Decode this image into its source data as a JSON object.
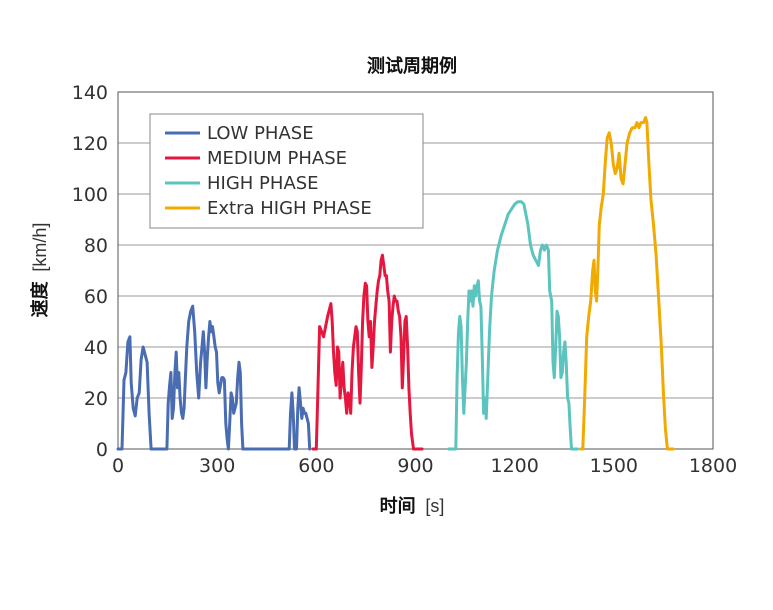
{
  "chart_data": {
    "type": "line",
    "title": "测试周期例",
    "xlabel_main": "时间",
    "xlabel_unit": "[s]",
    "ylabel_main": "速度",
    "ylabel_unit": "[km/h]",
    "xlim": [
      0,
      1800
    ],
    "ylim": [
      0,
      140
    ],
    "xticks": [
      0,
      300,
      600,
      900,
      1200,
      1500,
      1800
    ],
    "yticks": [
      0,
      20,
      40,
      60,
      80,
      100,
      120,
      140
    ],
    "xtick_labels": [
      "0",
      "300",
      "600",
      "900",
      "1200",
      "1500",
      "1800"
    ],
    "ytick_labels": [
      "0",
      "20",
      "40",
      "60",
      "80",
      "100",
      "120",
      "140"
    ],
    "grid": true,
    "legend_position": "top-left",
    "series": [
      {
        "name": "LOW PHASE",
        "color": "#4a6cb3",
        "points": [
          [
            0,
            0
          ],
          [
            12,
            0
          ],
          [
            18,
            27
          ],
          [
            24,
            30
          ],
          [
            30,
            42
          ],
          [
            36,
            44
          ],
          [
            40,
            26
          ],
          [
            46,
            16
          ],
          [
            52,
            13
          ],
          [
            58,
            20
          ],
          [
            64,
            22
          ],
          [
            70,
            35
          ],
          [
            76,
            40
          ],
          [
            82,
            37
          ],
          [
            88,
            34
          ],
          [
            94,
            14
          ],
          [
            100,
            0
          ],
          [
            148,
            0
          ],
          [
            152,
            18
          ],
          [
            156,
            25
          ],
          [
            160,
            30
          ],
          [
            164,
            12
          ],
          [
            168,
            16
          ],
          [
            172,
            30
          ],
          [
            176,
            38
          ],
          [
            180,
            24
          ],
          [
            184,
            30
          ],
          [
            188,
            20
          ],
          [
            192,
            14
          ],
          [
            196,
            12
          ],
          [
            200,
            16
          ],
          [
            204,
            28
          ],
          [
            208,
            40
          ],
          [
            214,
            50
          ],
          [
            220,
            54
          ],
          [
            226,
            56
          ],
          [
            232,
            46
          ],
          [
            238,
            30
          ],
          [
            244,
            20
          ],
          [
            250,
            34
          ],
          [
            254,
            40
          ],
          [
            258,
            46
          ],
          [
            262,
            38
          ],
          [
            266,
            24
          ],
          [
            270,
            36
          ],
          [
            274,
            44
          ],
          [
            278,
            50
          ],
          [
            282,
            46
          ],
          [
            286,
            48
          ],
          [
            290,
            44
          ],
          [
            294,
            40
          ],
          [
            298,
            38
          ],
          [
            302,
            26
          ],
          [
            306,
            22
          ],
          [
            310,
            25
          ],
          [
            314,
            28
          ],
          [
            318,
            28
          ],
          [
            322,
            27
          ],
          [
            326,
            10
          ],
          [
            330,
            4
          ],
          [
            334,
            0
          ],
          [
            338,
            10
          ],
          [
            342,
            22
          ],
          [
            346,
            20
          ],
          [
            350,
            14
          ],
          [
            354,
            16
          ],
          [
            358,
            18
          ],
          [
            362,
            28
          ],
          [
            366,
            34
          ],
          [
            370,
            30
          ],
          [
            374,
            10
          ],
          [
            378,
            0
          ],
          [
            518,
            0
          ],
          [
            522,
            14
          ],
          [
            526,
            22
          ],
          [
            530,
            14
          ],
          [
            534,
            0
          ],
          [
            540,
            0
          ],
          [
            544,
            16
          ],
          [
            548,
            24
          ],
          [
            552,
            18
          ],
          [
            556,
            12
          ],
          [
            560,
            16
          ],
          [
            564,
            14
          ],
          [
            568,
            14
          ],
          [
            572,
            12
          ],
          [
            576,
            10
          ],
          [
            580,
            0
          ]
        ]
      },
      {
        "name": "MEDIUM PHASE",
        "color": "#e5173f",
        "points": [
          [
            590,
            0
          ],
          [
            600,
            0
          ],
          [
            604,
            20
          ],
          [
            610,
            48
          ],
          [
            616,
            46
          ],
          [
            622,
            44
          ],
          [
            628,
            48
          ],
          [
            634,
            52
          ],
          [
            640,
            55
          ],
          [
            644,
            57
          ],
          [
            648,
            50
          ],
          [
            652,
            38
          ],
          [
            656,
            30
          ],
          [
            660,
            25
          ],
          [
            664,
            40
          ],
          [
            668,
            38
          ],
          [
            672,
            20
          ],
          [
            676,
            28
          ],
          [
            680,
            34
          ],
          [
            684,
            24
          ],
          [
            688,
            20
          ],
          [
            692,
            14
          ],
          [
            696,
            22
          ],
          [
            700,
            20
          ],
          [
            704,
            14
          ],
          [
            708,
            30
          ],
          [
            712,
            40
          ],
          [
            716,
            44
          ],
          [
            720,
            48
          ],
          [
            724,
            46
          ],
          [
            728,
            30
          ],
          [
            732,
            18
          ],
          [
            736,
            32
          ],
          [
            740,
            50
          ],
          [
            744,
            60
          ],
          [
            748,
            65
          ],
          [
            752,
            64
          ],
          [
            756,
            50
          ],
          [
            760,
            44
          ],
          [
            764,
            50
          ],
          [
            768,
            32
          ],
          [
            772,
            40
          ],
          [
            776,
            50
          ],
          [
            780,
            56
          ],
          [
            784,
            62
          ],
          [
            788,
            66
          ],
          [
            792,
            68
          ],
          [
            796,
            74
          ],
          [
            800,
            76
          ],
          [
            804,
            72
          ],
          [
            808,
            68
          ],
          [
            812,
            68
          ],
          [
            816,
            62
          ],
          [
            820,
            58
          ],
          [
            824,
            38
          ],
          [
            828,
            50
          ],
          [
            832,
            56
          ],
          [
            836,
            60
          ],
          [
            840,
            58
          ],
          [
            844,
            58
          ],
          [
            848,
            54
          ],
          [
            852,
            52
          ],
          [
            856,
            44
          ],
          [
            860,
            24
          ],
          [
            864,
            36
          ],
          [
            868,
            50
          ],
          [
            872,
            52
          ],
          [
            876,
            40
          ],
          [
            880,
            24
          ],
          [
            884,
            14
          ],
          [
            888,
            6
          ],
          [
            894,
            0
          ],
          [
            920,
            0
          ]
        ]
      },
      {
        "name": "HIGH PHASE",
        "color": "#5cc4be",
        "points": [
          [
            1000,
            0
          ],
          [
            1022,
            0
          ],
          [
            1026,
            28
          ],
          [
            1030,
            46
          ],
          [
            1034,
            52
          ],
          [
            1038,
            48
          ],
          [
            1042,
            28
          ],
          [
            1046,
            14
          ],
          [
            1050,
            24
          ],
          [
            1054,
            34
          ],
          [
            1058,
            50
          ],
          [
            1062,
            62
          ],
          [
            1066,
            58
          ],
          [
            1070,
            62
          ],
          [
            1074,
            56
          ],
          [
            1078,
            64
          ],
          [
            1082,
            60
          ],
          [
            1086,
            64
          ],
          [
            1090,
            66
          ],
          [
            1094,
            58
          ],
          [
            1098,
            56
          ],
          [
            1102,
            36
          ],
          [
            1106,
            14
          ],
          [
            1110,
            20
          ],
          [
            1114,
            12
          ],
          [
            1118,
            26
          ],
          [
            1124,
            46
          ],
          [
            1130,
            60
          ],
          [
            1138,
            70
          ],
          [
            1148,
            78
          ],
          [
            1160,
            84
          ],
          [
            1170,
            88
          ],
          [
            1180,
            92
          ],
          [
            1190,
            94
          ],
          [
            1200,
            96
          ],
          [
            1210,
            97
          ],
          [
            1220,
            97
          ],
          [
            1228,
            96
          ],
          [
            1234,
            92
          ],
          [
            1240,
            88
          ],
          [
            1248,
            80
          ],
          [
            1256,
            76
          ],
          [
            1264,
            74
          ],
          [
            1272,
            72
          ],
          [
            1278,
            78
          ],
          [
            1284,
            80
          ],
          [
            1290,
            78
          ],
          [
            1296,
            80
          ],
          [
            1302,
            78
          ],
          [
            1306,
            62
          ],
          [
            1312,
            58
          ],
          [
            1316,
            34
          ],
          [
            1320,
            28
          ],
          [
            1324,
            40
          ],
          [
            1328,
            54
          ],
          [
            1332,
            52
          ],
          [
            1336,
            44
          ],
          [
            1340,
            28
          ],
          [
            1344,
            30
          ],
          [
            1348,
            38
          ],
          [
            1352,
            42
          ],
          [
            1356,
            34
          ],
          [
            1360,
            20
          ],
          [
            1364,
            18
          ],
          [
            1368,
            8
          ],
          [
            1372,
            0
          ],
          [
            1390,
            0
          ]
        ]
      },
      {
        "name": "Extra HIGH PHASE",
        "color": "#f2a900",
        "points": [
          [
            1400,
            0
          ],
          [
            1406,
            0
          ],
          [
            1412,
            20
          ],
          [
            1418,
            44
          ],
          [
            1424,
            52
          ],
          [
            1430,
            58
          ],
          [
            1436,
            70
          ],
          [
            1440,
            74
          ],
          [
            1444,
            62
          ],
          [
            1448,
            58
          ],
          [
            1452,
            72
          ],
          [
            1456,
            88
          ],
          [
            1462,
            95
          ],
          [
            1468,
            100
          ],
          [
            1474,
            112
          ],
          [
            1480,
            122
          ],
          [
            1486,
            124
          ],
          [
            1492,
            120
          ],
          [
            1498,
            112
          ],
          [
            1504,
            108
          ],
          [
            1510,
            110
          ],
          [
            1516,
            116
          ],
          [
            1522,
            106
          ],
          [
            1528,
            104
          ],
          [
            1534,
            112
          ],
          [
            1540,
            120
          ],
          [
            1548,
            124
          ],
          [
            1556,
            126
          ],
          [
            1564,
            126
          ],
          [
            1570,
            128
          ],
          [
            1576,
            126
          ],
          [
            1582,
            128
          ],
          [
            1590,
            128
          ],
          [
            1596,
            130
          ],
          [
            1600,
            128
          ],
          [
            1606,
            112
          ],
          [
            1612,
            98
          ],
          [
            1620,
            88
          ],
          [
            1628,
            76
          ],
          [
            1636,
            58
          ],
          [
            1644,
            40
          ],
          [
            1650,
            22
          ],
          [
            1656,
            8
          ],
          [
            1662,
            0
          ],
          [
            1680,
            0
          ]
        ]
      }
    ]
  }
}
